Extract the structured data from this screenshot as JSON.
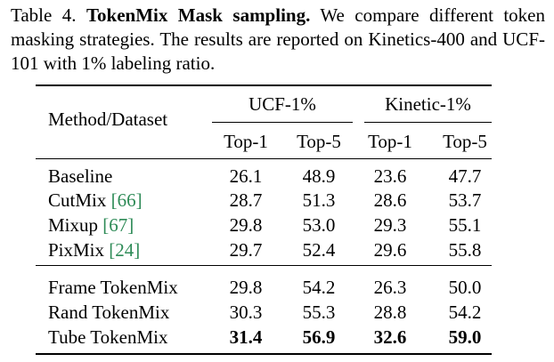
{
  "caption": {
    "label": "Table 4.",
    "title": "TokenMix Mask sampling.",
    "line1_rest": "We compare different token",
    "line2": "masking strategies.  The results are reported on Kinetics-400 and",
    "line3": "UCF-101 with 1% labeling ratio."
  },
  "table": {
    "header_method": "Method/Dataset",
    "groups": [
      "UCF-1%",
      "Kinetic-1%"
    ],
    "subheaders": [
      "Top-1",
      "Top-5",
      "Top-1",
      "Top-5"
    ],
    "rows": [
      {
        "method": "Baseline",
        "ref": "",
        "values": [
          "26.1",
          "48.9",
          "23.6",
          "47.7"
        ]
      },
      {
        "method": "CutMix",
        "ref": "[66]",
        "values": [
          "28.7",
          "51.3",
          "28.6",
          "53.7"
        ]
      },
      {
        "method": "Mixup",
        "ref": "[67]",
        "values": [
          "29.8",
          "53.0",
          "29.3",
          "55.1"
        ]
      },
      {
        "method": "PixMix",
        "ref": "[24]",
        "values": [
          "29.7",
          "52.4",
          "29.6",
          "55.8"
        ]
      },
      {
        "method": "Frame TokenMix",
        "ref": "",
        "values": [
          "29.8",
          "54.2",
          "26.3",
          "50.0"
        ]
      },
      {
        "method": "Rand TokenMix",
        "ref": "",
        "values": [
          "30.3",
          "55.3",
          "28.8",
          "54.2"
        ]
      },
      {
        "method": "Tube TokenMix",
        "ref": "",
        "values": [
          "31.4",
          "56.9",
          "32.6",
          "59.0"
        ]
      }
    ]
  }
}
